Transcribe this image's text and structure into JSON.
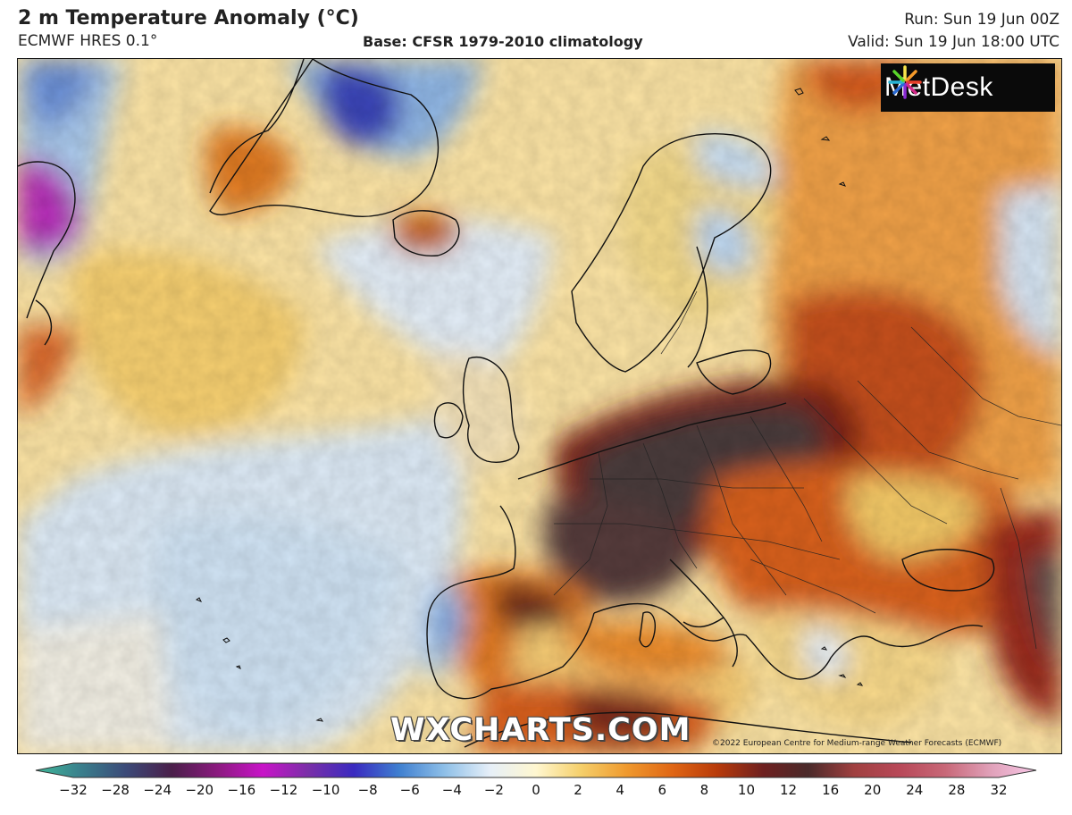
{
  "header": {
    "title": "2 m Temperature Anomaly (°C)",
    "model": "ECMWF HRES 0.1°",
    "base": "Base: CFSR 1979-2010 climatology",
    "run": "Run: Sun 19 Jun 00Z",
    "valid": "Valid: Sun 19 Jun 18:00 UTC"
  },
  "map": {
    "logo_text": "MetDesk",
    "watermark": "WXCHARTS.COM",
    "copyright": "©2022 European Centre for Medium-range Weather Forecasts (ECMWF)"
  },
  "colorbar": {
    "ticks": [
      "−32",
      "−28",
      "−24",
      "−20",
      "−16",
      "−12",
      "−10",
      "−8",
      "−6",
      "−4",
      "−2",
      "0",
      "2",
      "4",
      "6",
      "8",
      "10",
      "12",
      "16",
      "20",
      "24",
      "28",
      "32"
    ],
    "colors": [
      "#3fb99a",
      "#3a7f8c",
      "#3b4a78",
      "#4a1f4a",
      "#8a1a7e",
      "#c814c8",
      "#7a2fa8",
      "#3a2ac0",
      "#3f7fd0",
      "#8fc0e8",
      "#e6eff8",
      "#fff7d0",
      "#f5cf6a",
      "#ef9a2e",
      "#e06614",
      "#b83a0a",
      "#6e2020",
      "#4a2a2a",
      "#a04040",
      "#b84858",
      "#c86878",
      "#e0a0b8",
      "#f8c8e8"
    ]
  }
}
